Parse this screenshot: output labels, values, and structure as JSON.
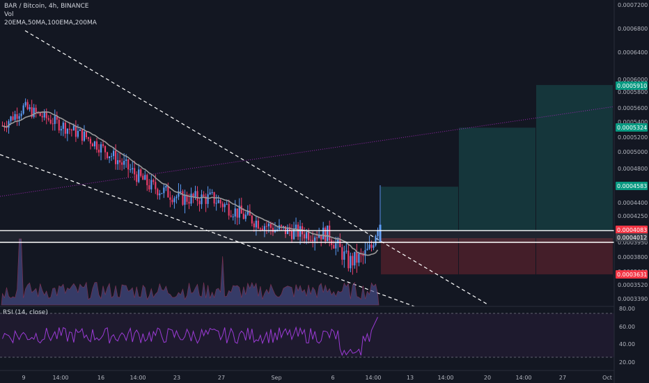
{
  "header": {
    "title": "BAR / Bitcoin, 4h, BINANCE",
    "vol_label": "Vol",
    "indicators_label": "20EMA,50MA,100EMA,200MA"
  },
  "rsi": {
    "label": "RSI (14, close)",
    "upper_band": 70,
    "lower_band": 30,
    "ticks": [
      80,
      60,
      40,
      20
    ]
  },
  "colors": {
    "background": "#131722",
    "up": "#5b9cf6",
    "down": "#ef3e6b",
    "ma": "#9b9b9b",
    "rsi_line": "#9c3bd6",
    "profit_zone": "#163a3e",
    "stop_zone": "#4a1f2a",
    "teal_tag": "#089981",
    "red_tag": "#f23645"
  },
  "chart_data": {
    "type": "candlestick",
    "y_axis_ticks": [
      "0.0007200",
      "0.0006800",
      "0.0006400",
      "0.0006000",
      "0.0005800",
      "0.0005600",
      "0.0005400",
      "0.0005200",
      "0.0005000",
      "0.0004800",
      "0.0004600",
      "0.0004400",
      "0.0004250",
      "0.0004100",
      "0.0003950",
      "0.0003800",
      "0.0003660",
      "0.0003520",
      "0.0003390"
    ],
    "x_axis_ticks": [
      "9",
      "14:00",
      "16",
      "14:00",
      "23",
      "27",
      "Sep",
      "6",
      "14:00",
      "13",
      "14:00",
      "20",
      "14:00",
      "27",
      "Oct"
    ],
    "price_tags": [
      {
        "label": "0.0005910",
        "kind": "teal"
      },
      {
        "label": "0.0005324",
        "kind": "teal"
      },
      {
        "label": "0.0004583",
        "kind": "teal"
      },
      {
        "label": "0.0004083",
        "kind": "red"
      },
      {
        "label": "0.0004012",
        "kind": "gray"
      },
      {
        "label": "0.0003631",
        "kind": "red"
      }
    ],
    "horizontal_levels": [
      0.0004083,
      0.000395
    ],
    "targets": [
      0.0004583,
      0.0005324,
      0.000591
    ],
    "stop": 0.0003631,
    "entry": 0.0004083
  }
}
